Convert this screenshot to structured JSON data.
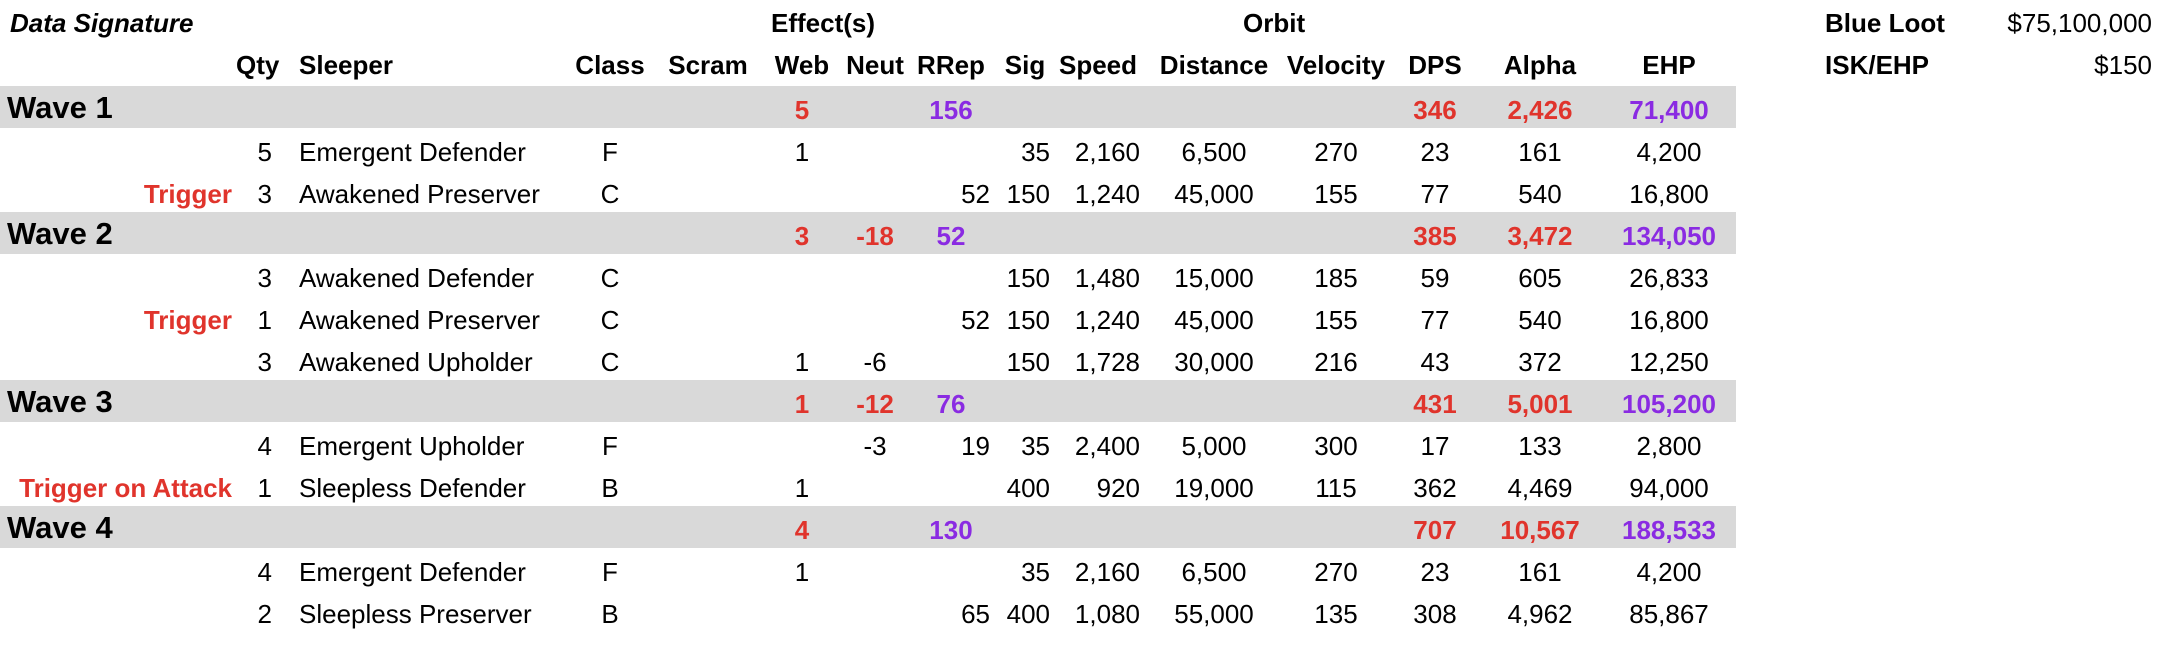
{
  "title": "Data Signature",
  "groups": {
    "effects": "Effect(s)",
    "orbit": "Orbit"
  },
  "headers": {
    "qty": "Qty",
    "sleeper": "Sleeper",
    "class": "Class",
    "scram": "Scram",
    "web": "Web",
    "neut": "Neut",
    "rrep": "RRep",
    "sig": "Sig",
    "speed": "Speed",
    "distance": "Distance",
    "velocity": "Velocity",
    "dps": "DPS",
    "alpha": "Alpha",
    "ehp": "EHP"
  },
  "summary": {
    "blue_loot_label": "Blue Loot",
    "blue_loot_value": "$75,100,000",
    "isk_ehp_label": "ISK/EHP",
    "isk_ehp_value": "$150"
  },
  "colors": {
    "red": "#e0342c",
    "purple": "#8a2be2",
    "band": "#d9d9d9"
  },
  "waves": [
    {
      "label": "Wave 1",
      "web": "5",
      "neut": "",
      "rrep": "156",
      "dps": "346",
      "alpha": "2,426",
      "ehp": "71,400",
      "rows": [
        {
          "trigger": "",
          "qty": "5",
          "sleeper": "Emergent Defender",
          "class": "F",
          "scram": "",
          "web": "1",
          "neut": "",
          "rrep": "",
          "sig": "35",
          "speed": "2,160",
          "distance": "6,500",
          "velocity": "270",
          "dps": "23",
          "alpha": "161",
          "ehp": "4,200"
        },
        {
          "trigger": "Trigger",
          "qty": "3",
          "sleeper": "Awakened Preserver",
          "class": "C",
          "scram": "",
          "web": "",
          "neut": "",
          "rrep": "52",
          "sig": "150",
          "speed": "1,240",
          "distance": "45,000",
          "velocity": "155",
          "dps": "77",
          "alpha": "540",
          "ehp": "16,800"
        }
      ]
    },
    {
      "label": "Wave 2",
      "web": "3",
      "neut": "-18",
      "rrep": "52",
      "dps": "385",
      "alpha": "3,472",
      "ehp": "134,050",
      "rows": [
        {
          "trigger": "",
          "qty": "3",
          "sleeper": "Awakened Defender",
          "class": "C",
          "scram": "",
          "web": "",
          "neut": "",
          "rrep": "",
          "sig": "150",
          "speed": "1,480",
          "distance": "15,000",
          "velocity": "185",
          "dps": "59",
          "alpha": "605",
          "ehp": "26,833"
        },
        {
          "trigger": "Trigger",
          "qty": "1",
          "sleeper": "Awakened Preserver",
          "class": "C",
          "scram": "",
          "web": "",
          "neut": "",
          "rrep": "52",
          "sig": "150",
          "speed": "1,240",
          "distance": "45,000",
          "velocity": "155",
          "dps": "77",
          "alpha": "540",
          "ehp": "16,800"
        },
        {
          "trigger": "",
          "qty": "3",
          "sleeper": "Awakened Upholder",
          "class": "C",
          "scram": "",
          "web": "1",
          "neut": "-6",
          "rrep": "",
          "sig": "150",
          "speed": "1,728",
          "distance": "30,000",
          "velocity": "216",
          "dps": "43",
          "alpha": "372",
          "ehp": "12,250"
        }
      ]
    },
    {
      "label": "Wave 3",
      "web": "1",
      "neut": "-12",
      "rrep": "76",
      "dps": "431",
      "alpha": "5,001",
      "ehp": "105,200",
      "rows": [
        {
          "trigger": "",
          "qty": "4",
          "sleeper": "Emergent Upholder",
          "class": "F",
          "scram": "",
          "web": "",
          "neut": "-3",
          "rrep": "19",
          "sig": "35",
          "speed": "2,400",
          "distance": "5,000",
          "velocity": "300",
          "dps": "17",
          "alpha": "133",
          "ehp": "2,800"
        },
        {
          "trigger": "Trigger on Attack",
          "qty": "1",
          "sleeper": "Sleepless Defender",
          "class": "B",
          "scram": "",
          "web": "1",
          "neut": "",
          "rrep": "",
          "sig": "400",
          "speed": "920",
          "distance": "19,000",
          "velocity": "115",
          "dps": "362",
          "alpha": "4,469",
          "ehp": "94,000"
        }
      ]
    },
    {
      "label": "Wave 4",
      "web": "4",
      "neut": "",
      "rrep": "130",
      "dps": "707",
      "alpha": "10,567",
      "ehp": "188,533",
      "rows": [
        {
          "trigger": "",
          "qty": "4",
          "sleeper": "Emergent Defender",
          "class": "F",
          "scram": "",
          "web": "1",
          "neut": "",
          "rrep": "",
          "sig": "35",
          "speed": "2,160",
          "distance": "6,500",
          "velocity": "270",
          "dps": "23",
          "alpha": "161",
          "ehp": "4,200"
        },
        {
          "trigger": "",
          "qty": "2",
          "sleeper": "Sleepless Preserver",
          "class": "B",
          "scram": "",
          "web": "",
          "neut": "",
          "rrep": "65",
          "sig": "400",
          "speed": "1,080",
          "distance": "55,000",
          "velocity": "135",
          "dps": "308",
          "alpha": "4,962",
          "ehp": "85,867"
        }
      ]
    }
  ]
}
